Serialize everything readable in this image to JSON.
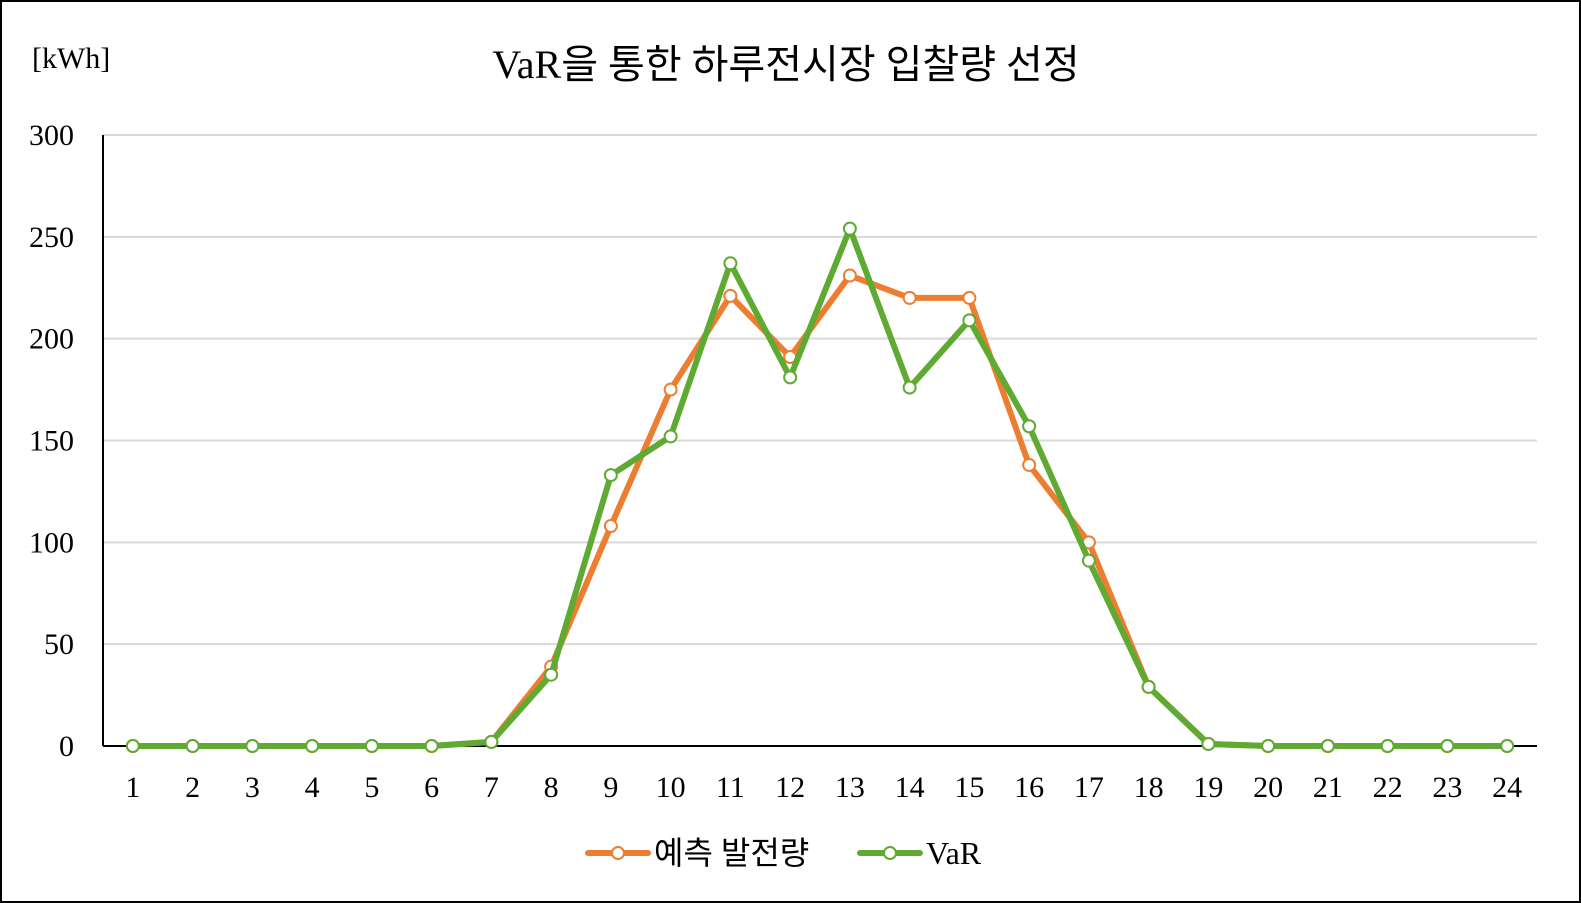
{
  "chart_data": {
    "type": "line",
    "title": "VaR을 통한 하루전시장 입찰량 선정",
    "unit_label": "[kWh]",
    "xlabel": "",
    "ylabel": "",
    "ylim": [
      0,
      300
    ],
    "y_ticks": [
      0,
      50,
      100,
      150,
      200,
      250,
      300
    ],
    "grid": true,
    "legend_position": "bottom",
    "categories": [
      "1",
      "2",
      "3",
      "4",
      "5",
      "6",
      "7",
      "8",
      "9",
      "10",
      "11",
      "12",
      "13",
      "14",
      "15",
      "16",
      "17",
      "18",
      "19",
      "20",
      "21",
      "22",
      "23",
      "24"
    ],
    "series": [
      {
        "name": "예측 발전량",
        "color": "#ED7D31",
        "values": [
          0,
          0,
          0,
          0,
          0,
          0,
          2,
          39,
          108,
          175,
          221,
          191,
          231,
          220,
          220,
          138,
          100,
          29,
          1,
          0,
          0,
          0,
          0,
          0
        ]
      },
      {
        "name": "VaR",
        "color": "#5FAA32",
        "values": [
          0,
          0,
          0,
          0,
          0,
          0,
          2,
          35,
          133,
          152,
          237,
          181,
          254,
          176,
          209,
          157,
          91,
          29,
          1,
          0,
          0,
          0,
          0,
          0
        ]
      }
    ]
  }
}
